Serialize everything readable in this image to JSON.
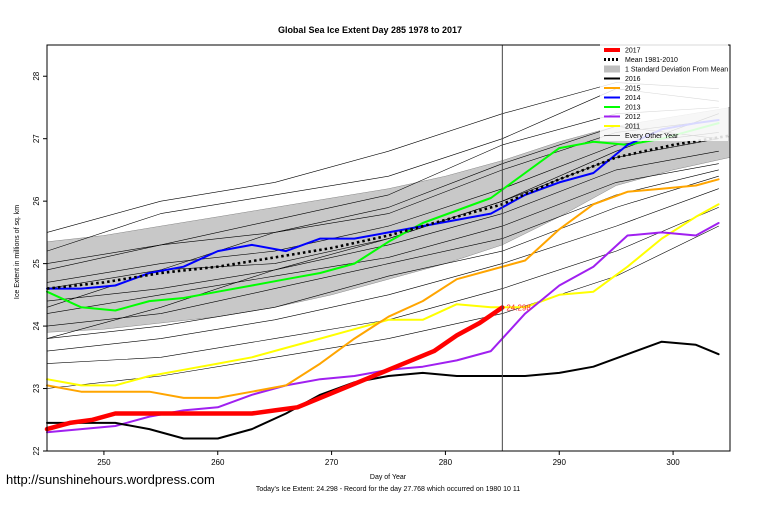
{
  "chart_data": {
    "type": "line",
    "title": "Global Sea Ice Extent Day 285 1978 to 2017",
    "xlabel": "Day of Year",
    "ylabel": "Ice Extent in millions of sq. km",
    "xlim": [
      245,
      305
    ],
    "ylim": [
      22,
      28.5
    ],
    "x_ticks": [
      250,
      260,
      270,
      280,
      290,
      300
    ],
    "y_ticks": [
      22,
      23,
      24,
      25,
      26,
      27,
      28
    ],
    "current_day": 285,
    "current_label": "24.298",
    "footer": "Today's Ice Extent: 24.298  - Record for the day 27.768 which occurred on 1980 10 11",
    "watermark": "http://sunshinehours.wordpress.com",
    "legend_position": "top-right",
    "legend": [
      {
        "label": "2017",
        "color": "#ff0000",
        "style": "solid",
        "width": 4
      },
      {
        "label": "Mean 1981-2010",
        "color": "#000000",
        "style": "dotted",
        "width": 3
      },
      {
        "label": "1 Standard Deviation From Mean",
        "color": "#bebebe",
        "style": "box",
        "width": 8
      },
      {
        "label": "2016",
        "color": "#000000",
        "style": "solid",
        "width": 2
      },
      {
        "label": "2015",
        "color": "#ffa500",
        "style": "solid",
        "width": 2
      },
      {
        "label": "2014",
        "color": "#0000ff",
        "style": "solid",
        "width": 2
      },
      {
        "label": "2013",
        "color": "#00ff00",
        "style": "solid",
        "width": 2
      },
      {
        "label": "2012",
        "color": "#a020f0",
        "style": "solid",
        "width": 2
      },
      {
        "label": "2011",
        "color": "#ffff00",
        "style": "solid",
        "width": 2
      },
      {
        "label": "Every Other Year",
        "color": "#000000",
        "style": "solid",
        "width": 0.6
      }
    ],
    "band": {
      "x": [
        245,
        250,
        255,
        260,
        265,
        270,
        275,
        280,
        285,
        290,
        295,
        300,
        305
      ],
      "upper": [
        25.35,
        25.45,
        25.6,
        25.75,
        25.9,
        26.05,
        26.2,
        26.4,
        26.65,
        26.95,
        27.2,
        27.35,
        27.5
      ],
      "lower": [
        23.9,
        23.95,
        24.05,
        24.15,
        24.3,
        24.5,
        24.75,
        25.0,
        25.3,
        25.75,
        26.25,
        26.5,
        26.7
      ]
    },
    "series": [
      {
        "name": "Every Other Year",
        "color": "#000000",
        "width": 0.6,
        "kind": "other",
        "x": [
          245,
          255,
          265,
          275,
          285,
          295,
          304
        ],
        "values": [
          25.5,
          26.0,
          26.3,
          26.8,
          27.4,
          27.9,
          27.8
        ]
      },
      {
        "name": "Every Other Year",
        "color": "#000000",
        "width": 0.6,
        "kind": "other",
        "x": [
          245,
          255,
          265,
          275,
          285,
          295,
          304
        ],
        "values": [
          25.2,
          25.8,
          26.1,
          26.4,
          27.0,
          27.8,
          27.6
        ]
      },
      {
        "name": "Every Other Year",
        "color": "#000000",
        "width": 0.6,
        "kind": "other",
        "x": [
          245,
          255,
          265,
          275,
          285,
          295,
          304
        ],
        "values": [
          25.0,
          25.3,
          25.7,
          26.1,
          26.9,
          27.4,
          27.5
        ]
      },
      {
        "name": "Every Other Year",
        "color": "#000000",
        "width": 0.6,
        "kind": "other",
        "x": [
          245,
          255,
          265,
          275,
          285,
          295,
          304
        ],
        "values": [
          24.9,
          25.3,
          25.5,
          25.8,
          26.5,
          27.1,
          27.3
        ]
      },
      {
        "name": "Every Other Year",
        "color": "#000000",
        "width": 0.6,
        "kind": "other",
        "x": [
          245,
          255,
          265,
          275,
          285,
          295,
          304
        ],
        "values": [
          24.7,
          25.0,
          25.2,
          25.6,
          26.2,
          26.9,
          27.1
        ]
      },
      {
        "name": "Every Other Year",
        "color": "#000000",
        "width": 0.6,
        "kind": "other",
        "x": [
          245,
          255,
          265,
          275,
          285,
          295,
          304
        ],
        "values": [
          24.6,
          24.9,
          25.0,
          25.4,
          26.0,
          26.7,
          27.0
        ]
      },
      {
        "name": "Every Other Year",
        "color": "#000000",
        "width": 0.6,
        "kind": "other",
        "x": [
          245,
          255,
          265,
          275,
          285,
          295,
          304
        ],
        "values": [
          24.4,
          24.6,
          24.9,
          25.3,
          25.8,
          26.5,
          26.8
        ]
      },
      {
        "name": "Every Other Year",
        "color": "#000000",
        "width": 0.6,
        "kind": "other",
        "x": [
          245,
          255,
          265,
          275,
          285,
          295,
          304
        ],
        "values": [
          24.2,
          24.5,
          24.8,
          25.1,
          25.6,
          26.3,
          26.6
        ]
      },
      {
        "name": "Every Other Year",
        "color": "#000000",
        "width": 0.6,
        "kind": "other",
        "x": [
          245,
          255,
          265,
          275,
          285,
          295,
          304
        ],
        "values": [
          24.0,
          24.2,
          24.6,
          25.0,
          25.4,
          26.1,
          26.5
        ]
      },
      {
        "name": "Every Other Year",
        "color": "#000000",
        "width": 0.6,
        "kind": "other",
        "x": [
          245,
          255,
          265,
          275,
          285,
          295,
          304
        ],
        "values": [
          23.8,
          24.0,
          24.3,
          24.8,
          25.2,
          25.9,
          26.4
        ]
      },
      {
        "name": "Every Other Year",
        "color": "#000000",
        "width": 0.6,
        "kind": "other",
        "x": [
          245,
          255,
          265,
          275,
          285,
          295,
          304
        ],
        "values": [
          23.6,
          23.8,
          24.1,
          24.5,
          25.0,
          25.6,
          26.2
        ]
      },
      {
        "name": "Every Other Year",
        "color": "#000000",
        "width": 0.6,
        "kind": "other",
        "x": [
          245,
          255,
          265,
          275,
          285,
          295,
          304
        ],
        "values": [
          23.4,
          23.5,
          23.8,
          24.1,
          24.6,
          25.2,
          25.9
        ]
      },
      {
        "name": "Every Other Year",
        "color": "#000000",
        "width": 0.6,
        "kind": "other",
        "x": [
          245,
          255,
          265,
          275,
          285,
          295,
          304
        ],
        "values": [
          23.0,
          23.2,
          23.5,
          23.8,
          24.2,
          24.8,
          25.6
        ]
      },
      {
        "name": "Every Other Year",
        "color": "#000000",
        "width": 0.6,
        "kind": "other",
        "x": [
          245,
          255,
          265,
          275,
          285,
          295,
          304
        ],
        "values": [
          23.8,
          24.3,
          24.9,
          25.4,
          26.0,
          26.8,
          27.4
        ]
      },
      {
        "name": "Every Other Year",
        "color": "#000000",
        "width": 0.6,
        "kind": "other",
        "x": [
          245,
          255,
          265,
          275,
          285,
          295,
          304
        ],
        "values": [
          24.3,
          24.9,
          25.5,
          25.9,
          26.6,
          27.2,
          27.0
        ]
      },
      {
        "name": "Mean 1981-2010",
        "color": "#000000",
        "width": 2.6,
        "kind": "mean",
        "x": [
          245,
          250,
          255,
          260,
          265,
          270,
          275,
          280,
          285,
          290,
          295,
          300,
          305
        ],
        "values": [
          24.6,
          24.7,
          24.85,
          24.95,
          25.1,
          25.25,
          25.45,
          25.7,
          25.95,
          26.35,
          26.7,
          26.9,
          27.05
        ]
      },
      {
        "name": "2011",
        "color": "#ffff00",
        "width": 2,
        "kind": "year",
        "x": [
          245,
          248,
          251,
          254,
          257,
          260,
          263,
          266,
          269,
          272,
          275,
          278,
          281,
          284,
          287,
          290,
          293,
          296,
          299,
          302,
          304
        ],
        "values": [
          23.15,
          23.05,
          23.05,
          23.2,
          23.3,
          23.4,
          23.5,
          23.65,
          23.8,
          23.95,
          24.1,
          24.1,
          24.35,
          24.3,
          24.3,
          24.5,
          24.55,
          24.95,
          25.4,
          25.75,
          25.95
        ]
      },
      {
        "name": "2012",
        "color": "#a020f0",
        "width": 2,
        "kind": "year",
        "x": [
          245,
          248,
          251,
          254,
          257,
          260,
          263,
          266,
          269,
          272,
          275,
          278,
          281,
          284,
          287,
          290,
          293,
          296,
          299,
          302,
          304
        ],
        "values": [
          22.3,
          22.35,
          22.4,
          22.55,
          22.65,
          22.7,
          22.9,
          23.05,
          23.15,
          23.2,
          23.3,
          23.35,
          23.45,
          23.6,
          24.2,
          24.65,
          24.95,
          25.45,
          25.5,
          25.45,
          25.65
        ]
      },
      {
        "name": "2013",
        "color": "#00ff00",
        "width": 2,
        "kind": "year",
        "x": [
          245,
          248,
          251,
          254,
          257,
          260,
          263,
          266,
          269,
          272,
          275,
          278,
          281,
          284,
          287,
          290,
          293,
          296,
          299,
          302,
          304
        ],
        "values": [
          24.55,
          24.3,
          24.25,
          24.4,
          24.45,
          24.55,
          24.65,
          24.75,
          24.85,
          25.0,
          25.35,
          25.65,
          25.85,
          26.05,
          26.45,
          26.85,
          26.95,
          26.9,
          27.0,
          27.15,
          27.25
        ]
      },
      {
        "name": "2014",
        "color": "#0000ff",
        "width": 2,
        "kind": "year",
        "x": [
          245,
          248,
          251,
          254,
          257,
          260,
          263,
          266,
          269,
          272,
          275,
          278,
          281,
          284,
          287,
          290,
          293,
          296,
          299,
          302,
          304
        ],
        "values": [
          24.6,
          24.6,
          24.65,
          24.85,
          24.95,
          25.2,
          25.3,
          25.2,
          25.4,
          25.4,
          25.5,
          25.6,
          25.7,
          25.8,
          26.1,
          26.3,
          26.45,
          26.9,
          27.15,
          27.25,
          27.3
        ]
      },
      {
        "name": "2015",
        "color": "#ffa500",
        "width": 2,
        "kind": "year",
        "x": [
          245,
          248,
          251,
          254,
          257,
          260,
          263,
          266,
          269,
          272,
          275,
          278,
          281,
          284,
          287,
          290,
          293,
          296,
          299,
          302,
          304
        ],
        "values": [
          23.05,
          22.95,
          22.95,
          22.95,
          22.85,
          22.85,
          22.95,
          23.05,
          23.4,
          23.8,
          24.15,
          24.4,
          24.75,
          24.9,
          25.05,
          25.55,
          25.95,
          26.15,
          26.2,
          26.25,
          26.35
        ]
      },
      {
        "name": "2016",
        "color": "#000000",
        "width": 2,
        "kind": "year",
        "x": [
          245,
          248,
          251,
          254,
          257,
          260,
          263,
          266,
          269,
          272,
          275,
          278,
          281,
          284,
          287,
          290,
          293,
          296,
          299,
          302,
          304
        ],
        "values": [
          22.45,
          22.45,
          22.45,
          22.35,
          22.2,
          22.2,
          22.35,
          22.6,
          22.9,
          23.1,
          23.2,
          23.25,
          23.2,
          23.2,
          23.2,
          23.25,
          23.35,
          23.55,
          23.75,
          23.7,
          23.55
        ]
      },
      {
        "name": "2017",
        "color": "#ff0000",
        "width": 4.5,
        "kind": "current",
        "x": [
          245,
          247,
          249,
          251,
          253,
          255,
          257,
          259,
          261,
          263,
          265,
          267,
          269,
          271,
          273,
          275,
          277,
          279,
          281,
          283,
          285
        ],
        "values": [
          22.35,
          22.45,
          22.5,
          22.6,
          22.6,
          22.6,
          22.6,
          22.6,
          22.6,
          22.6,
          22.65,
          22.7,
          22.85,
          23.0,
          23.15,
          23.3,
          23.45,
          23.6,
          23.85,
          24.05,
          24.298
        ]
      }
    ]
  }
}
